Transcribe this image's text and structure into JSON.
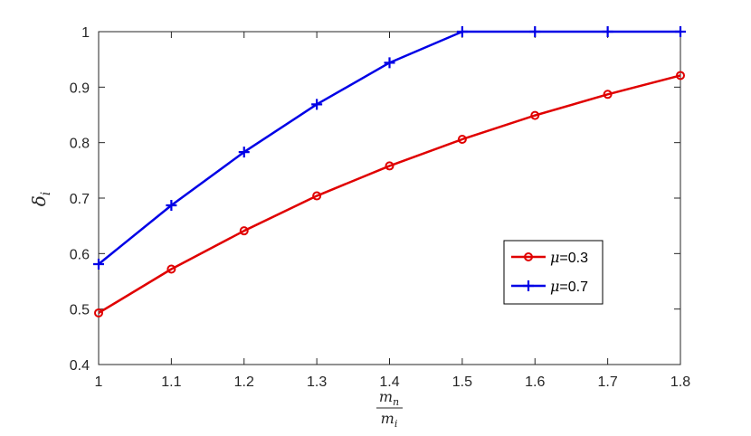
{
  "chart_data": {
    "type": "line",
    "title": "",
    "x": [
      1,
      1.1,
      1.2,
      1.3,
      1.4,
      1.5,
      1.6,
      1.7,
      1.8
    ],
    "xlim": [
      1,
      1.8
    ],
    "ylim": [
      0.4,
      1
    ],
    "x_ticks": [
      "1",
      "1.1",
      "1.2",
      "1.3",
      "1.4",
      "1.5",
      "1.6",
      "1.7",
      "1.8"
    ],
    "y_ticks": [
      "0.4",
      "0.5",
      "0.6",
      "0.7",
      "0.8",
      "0.9",
      "1"
    ],
    "xlabel": {
      "numerator": "m",
      "numerator_sub": "n",
      "denominator": "m",
      "denominator_sub": "i"
    },
    "ylabel": {
      "symbol": "δ",
      "sub": "i"
    },
    "grid": false,
    "legend_position": "right-middle",
    "series": [
      {
        "name": "μ=0.3",
        "name_symbol": "μ",
        "name_value": "=0.3",
        "color": "#e00000",
        "marker": "circle",
        "values": [
          0.493,
          0.572,
          0.641,
          0.704,
          0.758,
          0.806,
          0.849,
          0.887,
          0.921
        ]
      },
      {
        "name": "μ=0.7",
        "name_symbol": "μ",
        "name_value": "=0.7",
        "color": "#0000e6",
        "marker": "plus",
        "values": [
          0.581,
          0.687,
          0.783,
          0.869,
          0.944,
          1.0,
          1.0,
          1.0,
          1.0
        ]
      }
    ]
  }
}
